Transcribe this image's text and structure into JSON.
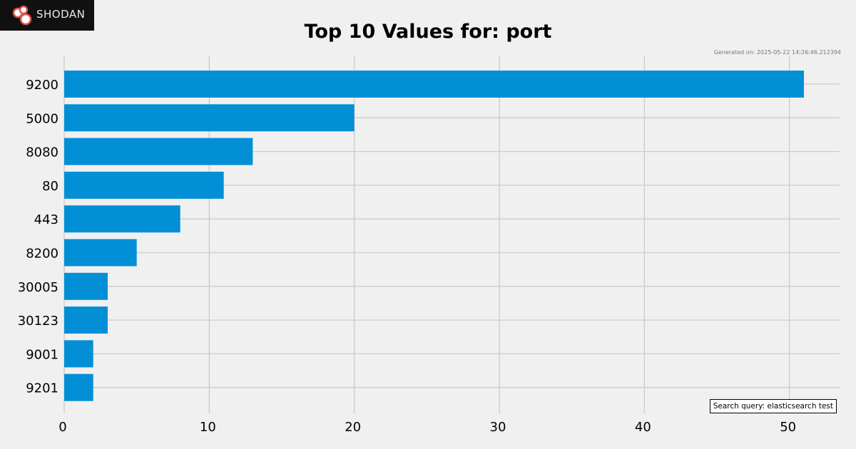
{
  "branding": {
    "logo_text": "SHODAN",
    "logo_icon": "shodan-logo-icon"
  },
  "generated_text": "Generated on: 2025-05-22 14:26:46.212394",
  "search_query_text": "Search query: elasticsearch test",
  "colors": {
    "background": "#f0f0f0",
    "bar": "#038fd6",
    "grid": "#cbcbcb"
  },
  "chart_data": {
    "type": "bar",
    "orientation": "horizontal",
    "title": "Top 10 Values for: port",
    "xlabel": "",
    "ylabel": "",
    "categories": [
      "9200",
      "5000",
      "8080",
      "80",
      "443",
      "8200",
      "30005",
      "30123",
      "9001",
      "9201"
    ],
    "values": [
      51,
      20,
      13,
      11,
      8,
      5,
      3,
      3,
      2,
      2
    ],
    "xlim": [
      0,
      53.5
    ],
    "xticks": [
      0,
      10,
      20,
      30,
      40,
      50
    ],
    "grid": true
  }
}
